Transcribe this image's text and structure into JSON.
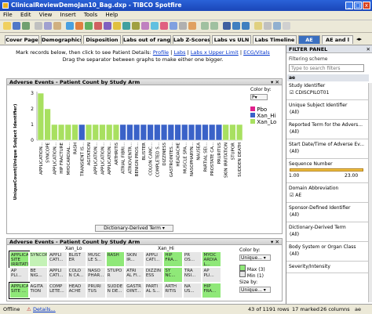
{
  "window": {
    "title": "ClinicalReviewDemoJan10_Bag.dxp - TIBCO Spotfire",
    "min": "_",
    "max": "□",
    "close": "x"
  },
  "menu": [
    "File",
    "Edit",
    "View",
    "Insert",
    "Tools",
    "Help"
  ],
  "tabs": [
    {
      "label": "Cover Page",
      "active": false
    },
    {
      "label": "Demographics",
      "active": false
    },
    {
      "label": "Disposition",
      "active": false
    },
    {
      "label": "Labs out of range",
      "active": false
    },
    {
      "label": "Lab Z-Scores",
      "active": false
    },
    {
      "label": "Labs vs ULN",
      "active": false
    },
    {
      "label": "Labs Timeline",
      "active": false
    },
    {
      "label": "AE",
      "active": true
    },
    {
      "label": "AE and l",
      "active": false
    }
  ],
  "instructions": {
    "line1_prefix": "Mark records below, then click to see Patient Details:",
    "links": [
      "Profile",
      "Labs",
      "Labs x Upper Limit",
      "ECG/Vitals"
    ],
    "sep": " | ",
    "line2": "Drag the separator between graphs to make either one bigger."
  },
  "bar_panel": {
    "title": "Adverse Events - Patient Count by Study Arm",
    "color_by_label": "Color by:",
    "color_by_value": "P",
    "ylabel": "UniqueCount(Unique Subject Identifier)",
    "xaxis_button": "Dictionary-Derived Term"
  },
  "treemap_panel": {
    "title": "Adverse Events - Patient Count by Study Arm",
    "group_labels": [
      "Xan_Lo",
      "Xan_Hi"
    ],
    "color_by_label": "Color by:",
    "color_by_value": "Unique...",
    "max_label": "Max (3)",
    "min_label": "Min (1)",
    "size_by_label": "Size by:",
    "size_by_value": "Unique..."
  },
  "chart_data": {
    "type": "bar",
    "title": "",
    "ylabel": "UniqueCount(Unique Subject Identifier)",
    "ylim": [
      0,
      3
    ],
    "yticks": [
      0,
      1,
      2,
      3
    ],
    "legend": [
      {
        "name": "Pbo",
        "color": "#e0208c"
      },
      {
        "name": "Xan_Hi",
        "color": "#3a62c8"
      },
      {
        "name": "Xan_Lo",
        "color": "#a8e060"
      }
    ],
    "categories": [
      "APPLICATION...",
      "SYNCOPE",
      "APPLICATION...",
      "HIP FRACTURE",
      "MYOCARDIAL...",
      "RASH",
      "TRANSIENT IS...",
      "AGITATION",
      "APPLICATION...",
      "APPLICATION...",
      "APPLICATION...",
      "ARTHRITIS",
      "ATRIAL FIBRI...",
      "ATRIOVENTR...",
      "BENIGN PROS...",
      "BLISTER",
      "COLON CANC...",
      "COMPLETED S...",
      "DIZZINESS",
      "GASTROINTES...",
      "HEADACHE",
      "MUSCLE SPA...",
      "NASOPHARYN...",
      "NAUSEA",
      "PARTIAL SEI...",
      "PROSTATE CA...",
      "PRURITUS",
      "SKIN IRRITATION",
      "STUPOR",
      "SUDDEN DEATH"
    ],
    "values": [
      3,
      2,
      1,
      1,
      1,
      1,
      1,
      1,
      1,
      1,
      1,
      1,
      1,
      1,
      1,
      1,
      1,
      1,
      1,
      1,
      1,
      1,
      1,
      1,
      1,
      1,
      1,
      1,
      1,
      1
    ],
    "series_index": [
      2,
      2,
      2,
      2,
      2,
      2,
      1,
      2,
      2,
      2,
      2,
      2,
      1,
      1,
      1,
      1,
      1,
      1,
      1,
      1,
      1,
      1,
      1,
      1,
      1,
      1,
      1,
      2,
      2,
      2
    ]
  },
  "treemap_cells": [
    {
      "label": "APPLICATION SITE IRRITATION",
      "tone": "g1",
      "sel": true
    },
    {
      "label": "SYNCOPE",
      "tone": "g2"
    },
    {
      "label": "APPLI CATI...",
      "tone": "g3"
    },
    {
      "label": "BLIST ER",
      "tone": "g3"
    },
    {
      "label": "MUSC LE S...",
      "tone": "g3"
    },
    {
      "label": "RASH",
      "tone": "g1"
    },
    {
      "label": "SKIN IR...",
      "tone": "g3"
    },
    {
      "label": "APPLI CATI...",
      "tone": "g3"
    },
    {
      "label": "HIP FRA...",
      "tone": "g1"
    },
    {
      "label": "PR OS...",
      "tone": "g3"
    },
    {
      "label": "MYOC ARDIA L...",
      "tone": "g1"
    },
    {
      "label": "AP PLI...",
      "tone": "g3"
    },
    {
      "label": "BE NIG...",
      "tone": "g3"
    },
    {
      "label": "APPLI CATI...",
      "tone": "g3"
    },
    {
      "label": "COLO N CA...",
      "tone": "g3"
    },
    {
      "label": "NASO PHAR...",
      "tone": "g3"
    },
    {
      "label": "STUPO R",
      "tone": "g3"
    },
    {
      "label": "ATRI AL FI...",
      "tone": "g3"
    },
    {
      "label": "DIZZIN ESS",
      "tone": "g3"
    },
    {
      "label": "SY NC...",
      "tone": "g1"
    },
    {
      "label": "TRA NSI...",
      "tone": "g3"
    },
    {
      "label": "AP PLI...",
      "tone": "g3"
    },
    {
      "label": "APPLICATION SITE ...",
      "tone": "g1",
      "sel": true
    },
    {
      "label": "AGITA TION",
      "tone": "g3"
    },
    {
      "label": "COMP LETE...",
      "tone": "g3"
    },
    {
      "label": "HEAD ACHE",
      "tone": "g3"
    },
    {
      "label": "PRURI TUS",
      "tone": "g3"
    },
    {
      "label": "SUDDE N DE...",
      "tone": "g3"
    },
    {
      "label": "GASTR OINT...",
      "tone": "g3"
    },
    {
      "label": "PARTI AL S...",
      "tone": "g3"
    },
    {
      "label": "ARTH RITIS",
      "tone": "g3"
    },
    {
      "label": "NA US...",
      "tone": "g3"
    },
    {
      "label": "HIP FRA...",
      "tone": "g1"
    }
  ],
  "filter_panel": {
    "title": "FILTER PANEL",
    "scheme_label": "Filtering scheme",
    "search_placeholder": "Type to search filters",
    "table_name": "ae",
    "items": [
      {
        "label": "Study Identifier",
        "value": "CDISCPILOT01",
        "type": "checkbox"
      },
      {
        "label": "Unique Subject Identifier",
        "value": "(All)",
        "type": "list"
      },
      {
        "label": "Reported Term for the Advers...",
        "value": "(All)",
        "type": "list"
      },
      {
        "label": "Start Date/Time of Adverse Ev...",
        "value": "(All)",
        "type": "list"
      },
      {
        "label": "Sequence Number",
        "value": "",
        "type": "range",
        "min": "1.00",
        "max": "23.00"
      },
      {
        "label": "Domain Abbreviation",
        "value": "AE",
        "type": "checkbox"
      },
      {
        "label": "Sponsor-Defined Identifier",
        "value": "(All)",
        "type": "list"
      },
      {
        "label": "Dictionary-Derived Term",
        "value": "(All)",
        "type": "list"
      },
      {
        "label": "Body System or Organ Class",
        "value": "(All)",
        "type": "list"
      },
      {
        "label": "Severity/Intensity",
        "value": "",
        "type": "list"
      }
    ]
  },
  "status": {
    "offline": "Offline",
    "details": "Details...",
    "rows": "43 of 1191 rows",
    "marked": "17 marked",
    "columns": "26 columns",
    "table": "ae"
  },
  "colors": {
    "pbo": "#e0208c",
    "xan_hi": "#3a62c8",
    "xan_lo": "#a8e060",
    "accent": "#3a6fc0"
  }
}
